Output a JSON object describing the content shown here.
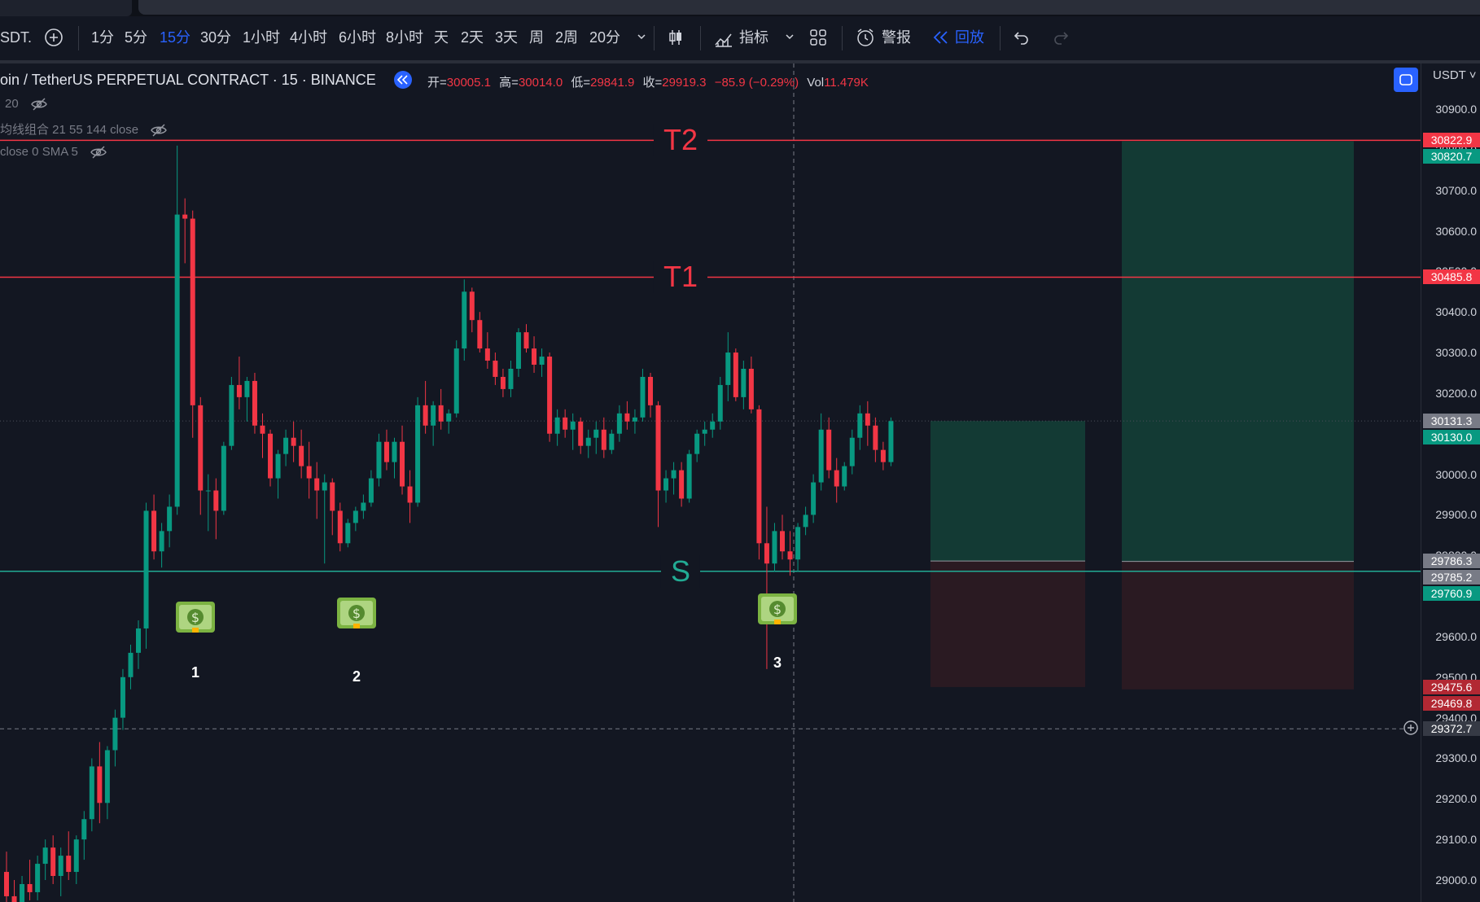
{
  "toolbar": {
    "symbol_fragment": "SDT.",
    "intervals": [
      "1分",
      "5分",
      "15分",
      "30分",
      "1小时",
      "4小时",
      "6小时",
      "8小时",
      "天",
      "2天",
      "3天",
      "周",
      "2周",
      "20分"
    ],
    "active_interval": "15分",
    "indicators_label": "指标",
    "alert_label": "警报",
    "replay_label": "回放"
  },
  "legend": {
    "title": "oin / TetherUS PERPETUAL CONTRACT · 15 · BINANCE",
    "ohlc": {
      "open_key": "开=",
      "open": "30005.1",
      "high_key": "高=",
      "high": "30014.0",
      "low_key": "低=",
      "low": "29841.9",
      "close_key": "收=",
      "close": "29919.3",
      "change": "−85.9 (−0.29%)",
      "vol_key": "Vol",
      "vol": "11.479K"
    },
    "indicators": [
      "20",
      "均线组合 21 55 144 close",
      "close 0 SMA 5"
    ]
  },
  "price_unit": "USDT",
  "axis_ticks": [
    "30900.0",
    "30800.0",
    "30700.0",
    "30600.0",
    "30500.0",
    "30400.0",
    "30300.0",
    "30200.0",
    "30100.0",
    "30000.0",
    "29900.0",
    "29800.0",
    "29700.0",
    "29600.0",
    "29500.0",
    "29400.0",
    "29300.0",
    "29200.0",
    "29100.0",
    "29000.0"
  ],
  "price_labels": [
    {
      "text": "30822.9",
      "color": "#f23645"
    },
    {
      "text": "30820.7",
      "color": "#089981"
    },
    {
      "text": "30485.8",
      "color": "#f23645"
    },
    {
      "text": "30131.3",
      "color": "#787b86"
    },
    {
      "text": "30130.0",
      "color": "#089981"
    },
    {
      "text": "29786.3",
      "color": "#787b86"
    },
    {
      "text": "29785.2",
      "color": "#787b86"
    },
    {
      "text": "29760.9",
      "color": "#089981"
    },
    {
      "text": "29475.6",
      "color": "#b22833"
    },
    {
      "text": "29469.8",
      "color": "#b22833"
    },
    {
      "text": "29372.7",
      "color": "#363a45"
    }
  ],
  "horizontal_lines": [
    {
      "label": "T2",
      "price": 30822.9,
      "color": "#f23645"
    },
    {
      "label": "T1",
      "price": 30485.8,
      "color": "#f23645"
    },
    {
      "label": "S",
      "price": 29760.9,
      "color": "#22ab94"
    }
  ],
  "markers": [
    "1",
    "2",
    "3"
  ],
  "colors": {
    "up": "#089981",
    "down": "#f23645",
    "bg": "#131722"
  },
  "chart_data": {
    "type": "candlestick",
    "ylim": [
      28950,
      30950
    ],
    "candles": [
      [
        29020,
        29070,
        28900,
        28960
      ],
      [
        28960,
        29000,
        28920,
        28930
      ],
      [
        28930,
        29010,
        28900,
        28990
      ],
      [
        28990,
        29050,
        28950,
        28970
      ],
      [
        28970,
        29060,
        28950,
        29040
      ],
      [
        29040,
        29100,
        29000,
        29080
      ],
      [
        29080,
        29110,
        28990,
        29010
      ],
      [
        29010,
        29080,
        28960,
        29060
      ],
      [
        29060,
        29120,
        29000,
        29020
      ],
      [
        29020,
        29110,
        28990,
        29100
      ],
      [
        29100,
        29170,
        29050,
        29150
      ],
      [
        29150,
        29300,
        29120,
        29280
      ],
      [
        29280,
        29340,
        29140,
        29190
      ],
      [
        29190,
        29330,
        29150,
        29320
      ],
      [
        29320,
        29420,
        29280,
        29400
      ],
      [
        29400,
        29520,
        29370,
        29500
      ],
      [
        29500,
        29580,
        29470,
        29560
      ],
      [
        29560,
        29640,
        29520,
        29620
      ],
      [
        29620,
        29930,
        29570,
        29910
      ],
      [
        29910,
        29950,
        29790,
        29810
      ],
      [
        29810,
        29880,
        29770,
        29860
      ],
      [
        29860,
        29950,
        29820,
        29920
      ],
      [
        29920,
        30810,
        29900,
        30640
      ],
      [
        30640,
        30680,
        30520,
        30630
      ],
      [
        30630,
        30650,
        30090,
        30170
      ],
      [
        30170,
        30190,
        29900,
        29960
      ],
      [
        29960,
        30000,
        29860,
        29960
      ],
      [
        29960,
        29990,
        29840,
        29910
      ],
      [
        29910,
        30080,
        29900,
        30070
      ],
      [
        30070,
        30240,
        30060,
        30220
      ],
      [
        30220,
        30290,
        30160,
        30190
      ],
      [
        30190,
        30240,
        30130,
        30230
      ],
      [
        30230,
        30250,
        30100,
        30120
      ],
      [
        30120,
        30150,
        30040,
        30100
      ],
      [
        30100,
        30110,
        29970,
        29990
      ],
      [
        29990,
        30060,
        29940,
        30050
      ],
      [
        30050,
        30110,
        30020,
        30090
      ],
      [
        30090,
        30130,
        30030,
        30070
      ],
      [
        30070,
        30110,
        29990,
        30020
      ],
      [
        30020,
        30080,
        29940,
        29990
      ],
      [
        29990,
        30030,
        29890,
        29960
      ],
      [
        29960,
        30000,
        29780,
        29980
      ],
      [
        29980,
        29990,
        29850,
        29910
      ],
      [
        29910,
        29930,
        29810,
        29830
      ],
      [
        29830,
        29890,
        29820,
        29880
      ],
      [
        29880,
        29920,
        29860,
        29910
      ],
      [
        29910,
        29950,
        29890,
        29930
      ],
      [
        29930,
        30010,
        29920,
        29990
      ],
      [
        29990,
        30100,
        29970,
        30080
      ],
      [
        30080,
        30110,
        30010,
        30030
      ],
      [
        30030,
        30090,
        29990,
        30080
      ],
      [
        30080,
        30120,
        29950,
        29970
      ],
      [
        29970,
        30010,
        29880,
        29930
      ],
      [
        29930,
        30190,
        29920,
        30170
      ],
      [
        30170,
        30230,
        30100,
        30120
      ],
      [
        30120,
        30180,
        30070,
        30170
      ],
      [
        30170,
        30210,
        30110,
        30130
      ],
      [
        30130,
        30160,
        30100,
        30150
      ],
      [
        30150,
        30330,
        30140,
        30310
      ],
      [
        30310,
        30480,
        30280,
        30450
      ],
      [
        30450,
        30460,
        30350,
        30380
      ],
      [
        30380,
        30400,
        30300,
        30310
      ],
      [
        30310,
        30350,
        30260,
        30280
      ],
      [
        30280,
        30300,
        30220,
        30240
      ],
      [
        30240,
        30260,
        30190,
        30210
      ],
      [
        30210,
        30280,
        30190,
        30260
      ],
      [
        30260,
        30360,
        30240,
        30350
      ],
      [
        30350,
        30370,
        30300,
        30310
      ],
      [
        30310,
        30340,
        30250,
        30270
      ],
      [
        30270,
        30310,
        30240,
        30290
      ],
      [
        30290,
        30300,
        30080,
        30100
      ],
      [
        30100,
        30160,
        30070,
        30140
      ],
      [
        30140,
        30160,
        30090,
        30110
      ],
      [
        30110,
        30150,
        30060,
        30130
      ],
      [
        30130,
        30140,
        30050,
        30070
      ],
      [
        30070,
        30110,
        30040,
        30090
      ],
      [
        30090,
        30130,
        30050,
        30110
      ],
      [
        30110,
        30140,
        30040,
        30060
      ],
      [
        30060,
        30110,
        30050,
        30100
      ],
      [
        30100,
        30170,
        30080,
        30150
      ],
      [
        30150,
        30180,
        30110,
        30130
      ],
      [
        30130,
        30160,
        30100,
        30140
      ],
      [
        30140,
        30260,
        30130,
        30240
      ],
      [
        30240,
        30250,
        30140,
        30170
      ],
      [
        30170,
        30180,
        29870,
        29960
      ],
      [
        29960,
        30010,
        29930,
        29990
      ],
      [
        29990,
        30030,
        29950,
        30010
      ],
      [
        30010,
        30030,
        29920,
        29940
      ],
      [
        29940,
        30060,
        29930,
        30050
      ],
      [
        30050,
        30110,
        30030,
        30100
      ],
      [
        30100,
        30130,
        30070,
        30110
      ],
      [
        30110,
        30150,
        30090,
        30130
      ],
      [
        30130,
        30240,
        30110,
        30220
      ],
      [
        30220,
        30350,
        30180,
        30300
      ],
      [
        30300,
        30310,
        30180,
        30190
      ],
      [
        30190,
        30280,
        30160,
        30260
      ],
      [
        30260,
        30290,
        30150,
        30160
      ],
      [
        30160,
        30170,
        29790,
        29830
      ],
      [
        29830,
        29920,
        29520,
        29780
      ],
      [
        29780,
        29880,
        29760,
        29860
      ],
      [
        29860,
        29900,
        29790,
        29810
      ],
      [
        29810,
        29860,
        29750,
        29790
      ],
      [
        29790,
        29880,
        29760,
        29870
      ],
      [
        29870,
        29920,
        29850,
        29900
      ],
      [
        29900,
        30000,
        29880,
        29980
      ],
      [
        29980,
        30150,
        29960,
        30110
      ],
      [
        30110,
        30140,
        29990,
        30010
      ],
      [
        30010,
        30040,
        29930,
        29970
      ],
      [
        29970,
        30030,
        29960,
        30020
      ],
      [
        30020,
        30110,
        30000,
        30090
      ],
      [
        30090,
        30170,
        30060,
        30150
      ],
      [
        30150,
        30180,
        30070,
        30120
      ],
      [
        30120,
        30140,
        30030,
        30060
      ],
      [
        30060,
        30080,
        30010,
        30030
      ],
      [
        30030,
        30140,
        30020,
        30131
      ]
    ]
  }
}
